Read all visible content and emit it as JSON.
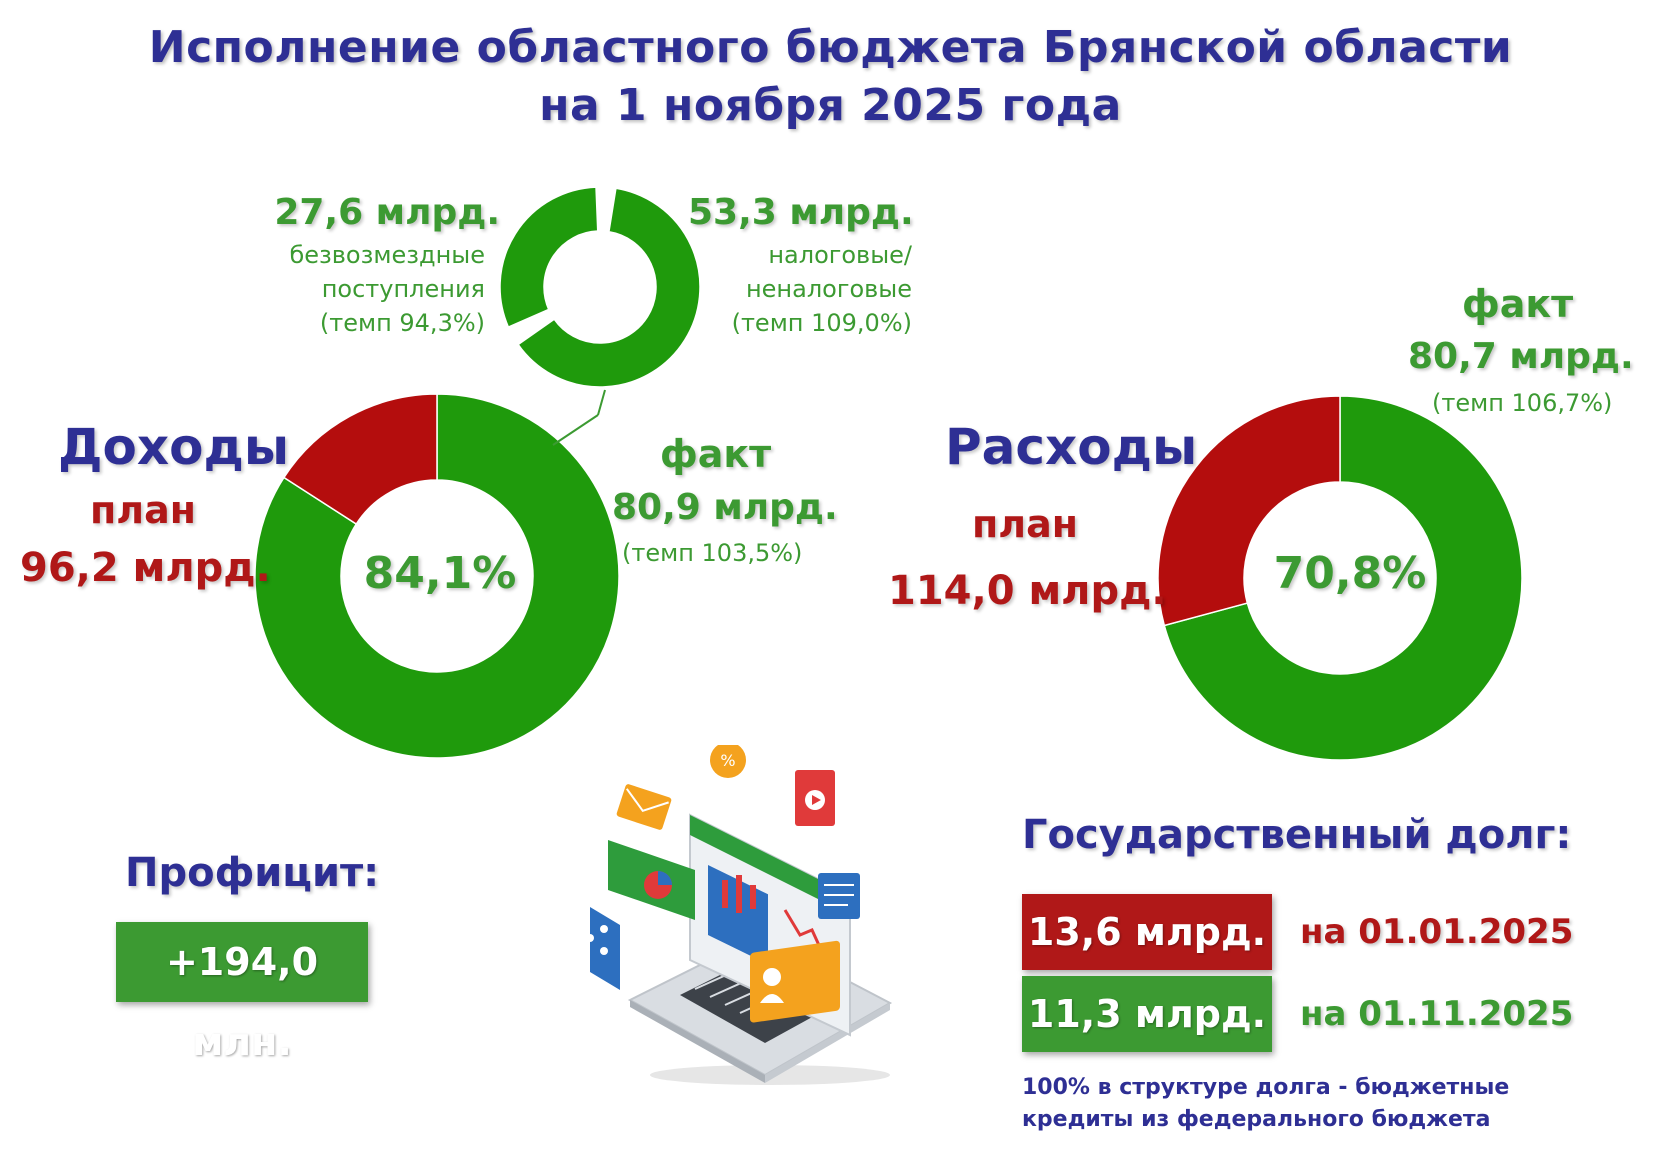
{
  "title": {
    "line1": "Исполнение областного бюджета Брянской области",
    "line2": "на 1 ноября 2025 года"
  },
  "income": {
    "heading": "Доходы",
    "plan_label": "план",
    "plan_value": "96,2 млрд.",
    "fact_label": "факт",
    "fact_value": "80,9 млрд.",
    "fact_rate": "(темп 103,5%)",
    "center_percent": "84,1%"
  },
  "income_structure": {
    "grants_value": "27,6 млрд.",
    "grants_label_1": "безвозмездные",
    "grants_label_2": "поступления",
    "grants_rate": "(темп 94,3%)",
    "tax_value": "53,3 млрд.",
    "tax_label_1": "налоговые/",
    "tax_label_2": "неналоговые",
    "tax_rate": "(темп 109,0%)"
  },
  "expenses": {
    "heading": "Расходы",
    "plan_label": "план",
    "plan_value": "114,0 млрд.",
    "fact_label": "факт",
    "fact_value": "80,7 млрд.",
    "fact_rate": "(темп 106,7%)",
    "center_percent": "70,8%"
  },
  "surplus": {
    "heading": "Профицит:",
    "value": "+194,0 млн."
  },
  "debt": {
    "heading": "Государственный долг:",
    "rows": [
      {
        "value": "13,6 млрд.",
        "date": "на 01.01.2025",
        "color": "#b01818"
      },
      {
        "value": "11,3 млрд.",
        "date": "на 01.11.2025",
        "color": "#3c9a32"
      }
    ],
    "note_line1": "100% в структуре долга - бюджетные",
    "note_line2": "кредиты из федерального бюджета"
  },
  "colors": {
    "fact": "#1f9a0c",
    "remaining": "#b40d0d",
    "navy": "#2e2f94",
    "text_green": "#3c9a32",
    "text_red": "#b01818"
  },
  "chart_data": [
    {
      "type": "pie",
      "title": "Доходы",
      "labels": [
        "факт",
        "план"
      ],
      "values": [
        84.1,
        15.9
      ],
      "center_label": "84,1%",
      "colors": [
        "#1f9a0c",
        "#b40d0d"
      ]
    },
    {
      "type": "pie",
      "labels": [
        "безвозмездные поступления",
        "налоговые/неналоговые"
      ],
      "values": [
        27.6,
        53.3
      ],
      "colors": [
        "#1f9a0c",
        "#1f9a0c"
      ]
    },
    {
      "type": "pie",
      "title": "Расходы",
      "labels": [
        "факт",
        "план"
      ],
      "values": [
        70.8,
        29.2
      ],
      "center_label": "70,8%",
      "colors": [
        "#1f9a0c",
        "#b40d0d"
      ]
    }
  ]
}
